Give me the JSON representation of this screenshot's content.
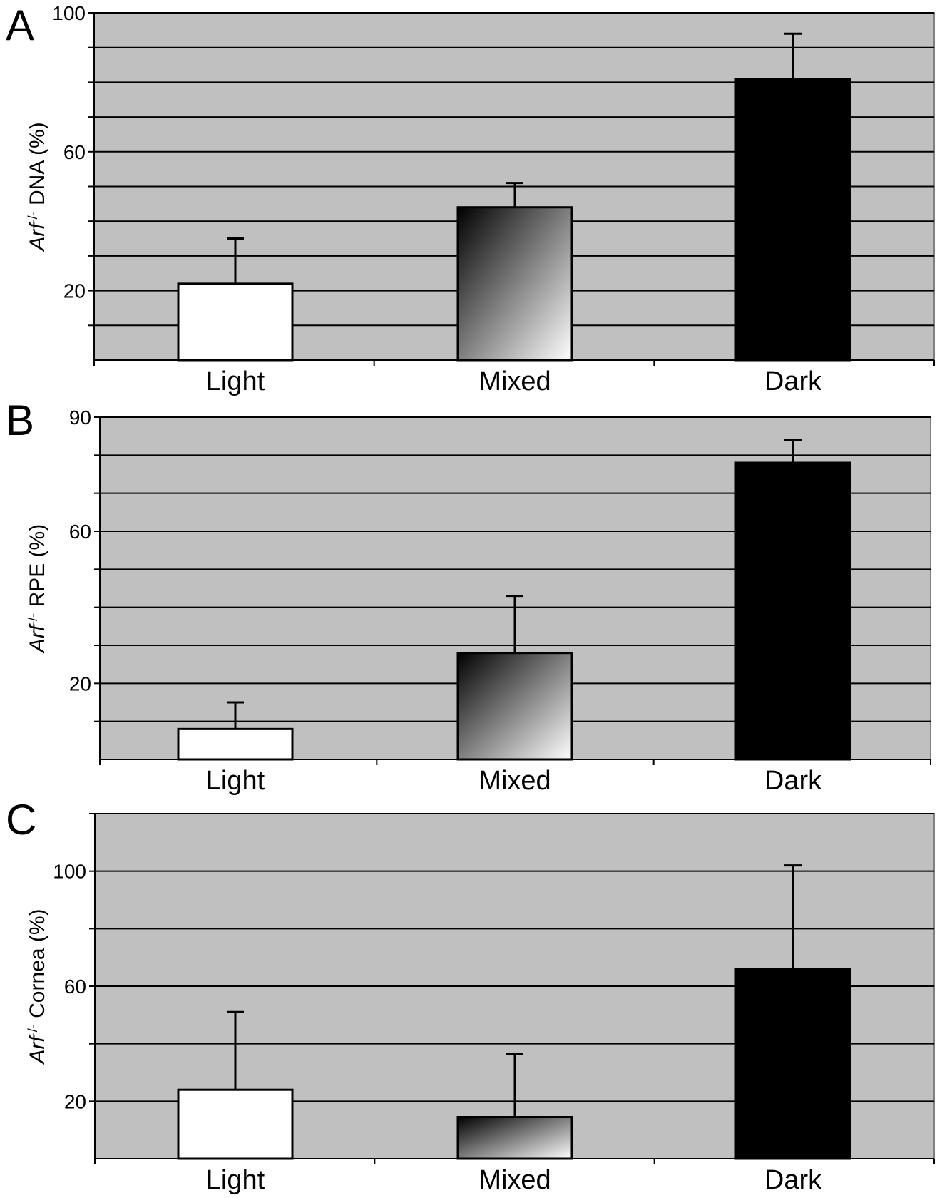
{
  "chart_data": [
    {
      "panel_label": "A",
      "type": "bar",
      "categories": [
        "Light",
        "Mixed",
        "Dark"
      ],
      "values": [
        22,
        44,
        81
      ],
      "errors": [
        13,
        7,
        13
      ],
      "ylabel_italic": "Arf",
      "ylabel_superscript": "-/-",
      "ylabel_rest": " DNA (%)",
      "ylim": [
        0,
        100
      ],
      "major_ticks": [
        20,
        60,
        100
      ],
      "grid_step": 10,
      "grid": true,
      "bar_fills": [
        "white",
        "gradient",
        "black"
      ],
      "colors": {
        "plot_bg": "#c0c0c0",
        "grid": "#000000"
      }
    },
    {
      "panel_label": "B",
      "type": "bar",
      "categories": [
        "Light",
        "Mixed",
        "Dark"
      ],
      "values": [
        8,
        28,
        78
      ],
      "errors": [
        7,
        15,
        6
      ],
      "ylabel_italic": "Arf",
      "ylabel_superscript": "-/-",
      "ylabel_rest": " RPE (%)",
      "ylim": [
        0,
        90
      ],
      "major_ticks": [
        20,
        60,
        90
      ],
      "grid_step": 10,
      "grid": true,
      "bar_fills": [
        "white",
        "gradient",
        "black"
      ],
      "colors": {
        "plot_bg": "#c0c0c0",
        "grid": "#000000"
      }
    },
    {
      "panel_label": "C",
      "type": "bar",
      "categories": [
        "Light",
        "Mixed",
        "Dark"
      ],
      "values": [
        24,
        14.5,
        66
      ],
      "errors": [
        27,
        22,
        36
      ],
      "ylabel_italic": "Arf",
      "ylabel_superscript": "-/-",
      "ylabel_rest": " Cornea (%)",
      "ylim": [
        0,
        120
      ],
      "major_ticks": [
        20,
        60,
        100
      ],
      "grid_step": 20,
      "grid": true,
      "bar_fills": [
        "white",
        "gradient",
        "black"
      ],
      "colors": {
        "plot_bg": "#c0c0c0",
        "grid": "#000000"
      }
    }
  ]
}
